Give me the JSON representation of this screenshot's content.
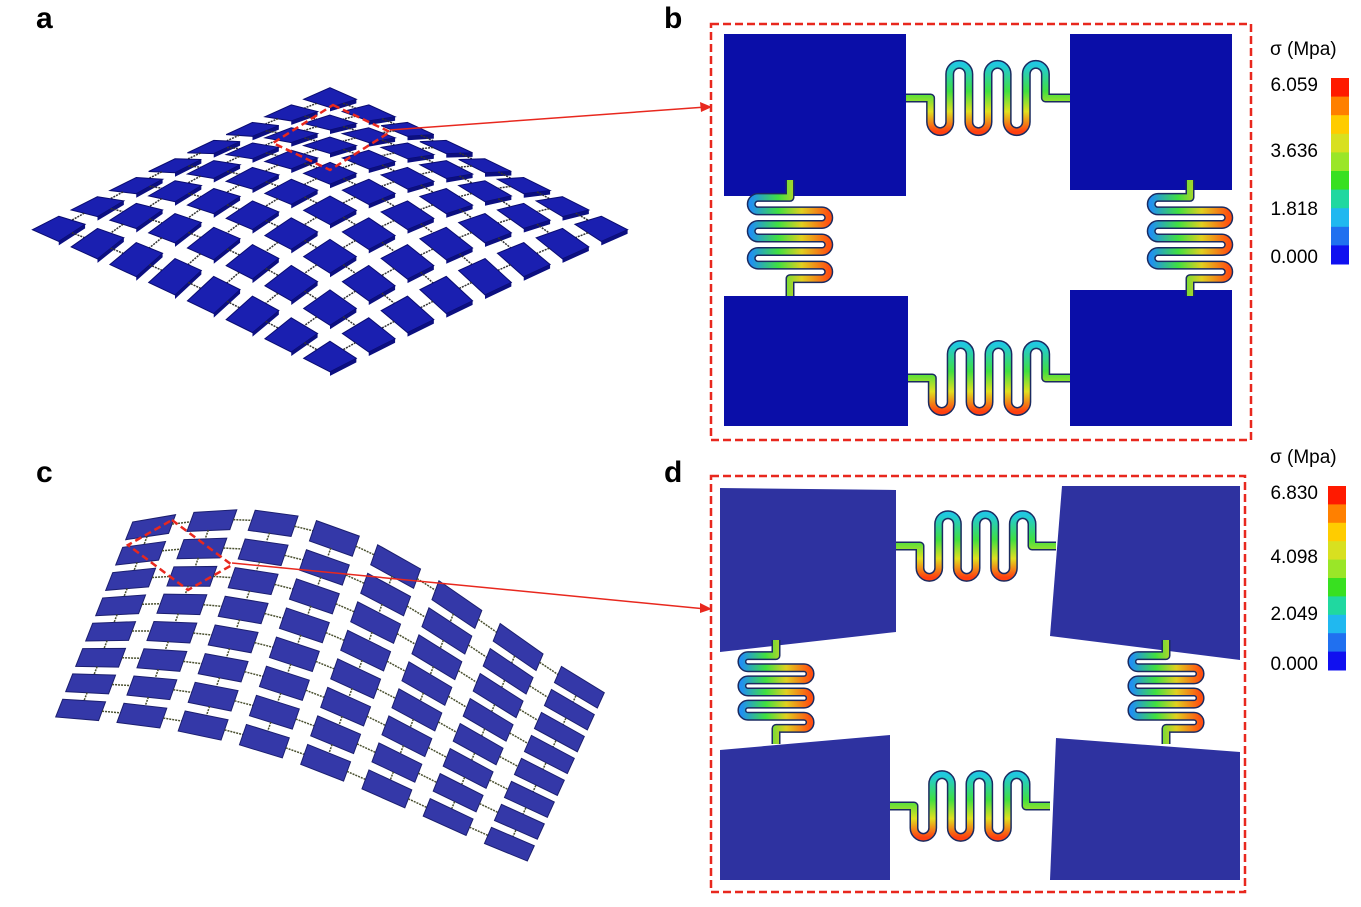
{
  "panels": [
    {
      "id": "a",
      "letter": "a"
    },
    {
      "id": "b",
      "letter": "b"
    },
    {
      "id": "c",
      "letter": "c"
    },
    {
      "id": "d",
      "letter": "d"
    }
  ],
  "colorbars": [
    {
      "panel": "b",
      "title": "σ (Mpa)",
      "ticks": [
        "6.059",
        "3.636",
        "1.818",
        "0.000"
      ]
    },
    {
      "panel": "d",
      "title": "σ (Mpa)",
      "ticks": [
        "6.830",
        "4.098",
        "2.049",
        "0.000"
      ]
    }
  ],
  "colors": {
    "highlight": "#e8281e",
    "island_b": "#0a0ea8",
    "island_d": "#2e32a0",
    "mesh_a": "#1a1fb0",
    "mesh_c": "#3438a8",
    "scale": [
      "#ff1a00",
      "#ff8000",
      "#ffcc00",
      "#d8e020",
      "#9ae628",
      "#38e020",
      "#20d8a0",
      "#20b8f0",
      "#2070f0",
      "#1010f0"
    ]
  }
}
